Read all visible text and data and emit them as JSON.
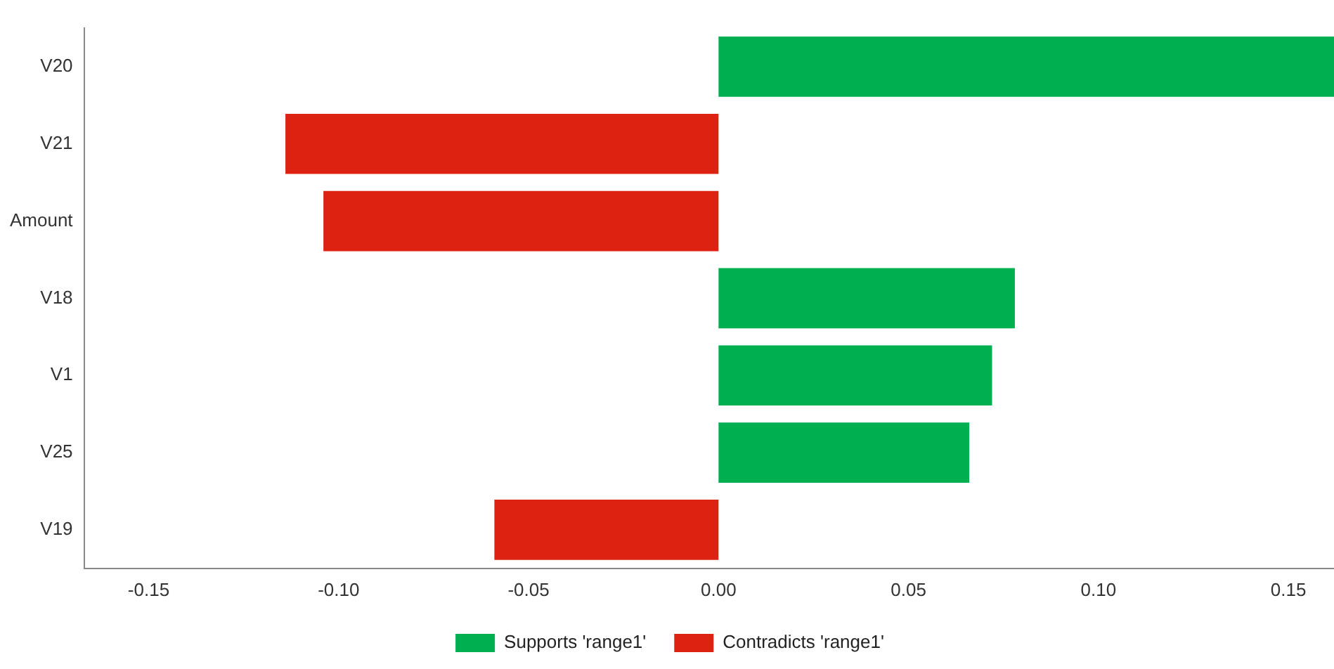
{
  "chart_data": {
    "type": "bar",
    "orientation": "horizontal",
    "stacked": true,
    "categories": [
      "V20",
      "V21",
      "Amount",
      "V18",
      "V1",
      "V25",
      "V19"
    ],
    "series": [
      {
        "name": "Supports 'range1'",
        "color": "#00b050",
        "values": [
          0.162,
          null,
          null,
          0.078,
          0.072,
          0.066,
          null
        ]
      },
      {
        "name": "Contradicts 'range1'",
        "color": "#dd2211",
        "values": [
          null,
          -0.114,
          -0.104,
          null,
          null,
          null,
          -0.059
        ]
      }
    ],
    "xlim": [
      -0.167,
      0.162
    ],
    "xticks": [
      {
        "value": -0.15,
        "label": "-0.15"
      },
      {
        "value": -0.1,
        "label": "-0.10"
      },
      {
        "value": -0.05,
        "label": "-0.05"
      },
      {
        "value": 0,
        "label": "0.00"
      },
      {
        "value": 0.05,
        "label": "0.05"
      },
      {
        "value": 0.1,
        "label": "0.10"
      },
      {
        "value": 0.15,
        "label": "0.15"
      }
    ],
    "grid": false,
    "legend": "bottom"
  }
}
